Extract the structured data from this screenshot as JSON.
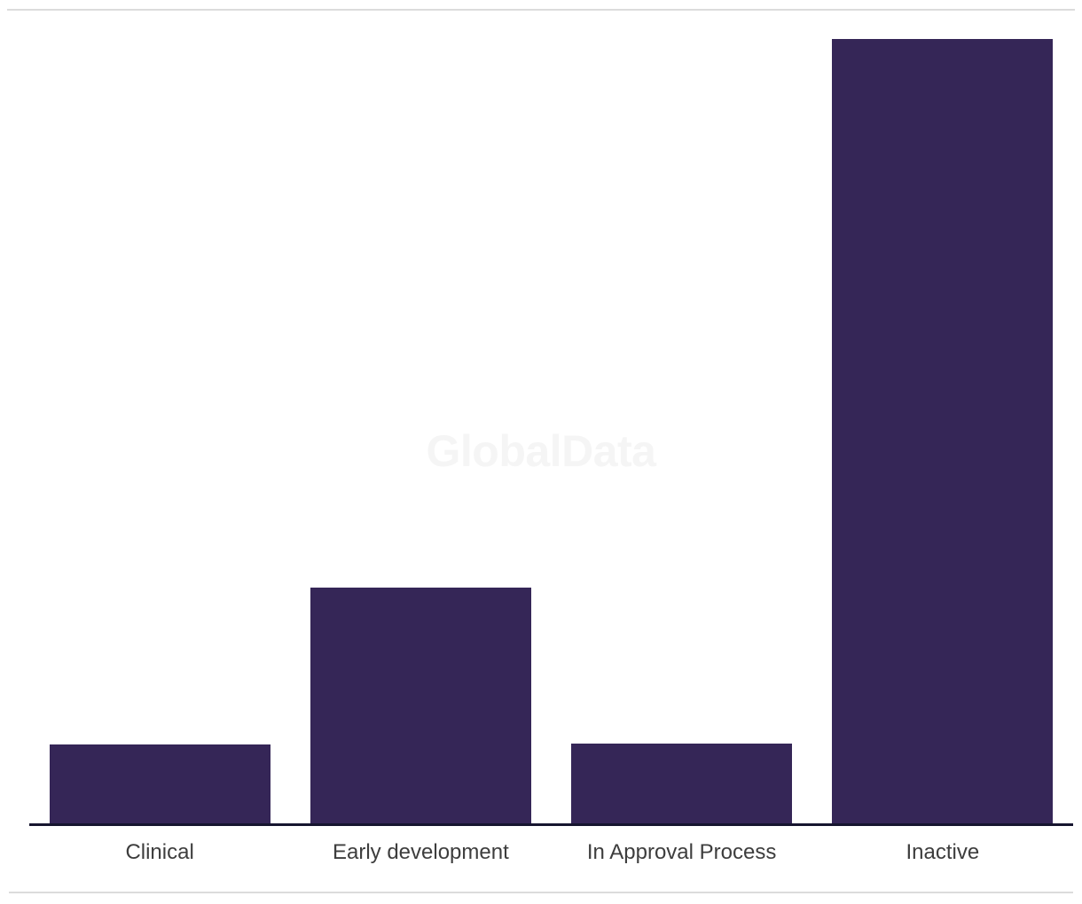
{
  "watermark": {
    "text": "GlobalData"
  },
  "colors": {
    "background": "#ffffff",
    "bar": "#352657",
    "axis_line": "#16152f",
    "label": "#3d3d3d",
    "divider": "#dcdcdc",
    "watermark": "#f5f5f5"
  },
  "chart_data": {
    "type": "bar",
    "title": "",
    "xlabel": "",
    "ylabel": "",
    "categories": [
      "Clinical",
      "Early development",
      "In Approval Process",
      "Inactive"
    ],
    "values": [
      89,
      266,
      90,
      885
    ],
    "values_pct_of_max": [
      10.1,
      30.1,
      10.2,
      100
    ],
    "ylim": [
      0,
      886
    ],
    "grid": false,
    "legend": false,
    "y_axis_tick_labels_visible": false,
    "bar_color": "#352657",
    "watermark_text": "GlobalData"
  }
}
